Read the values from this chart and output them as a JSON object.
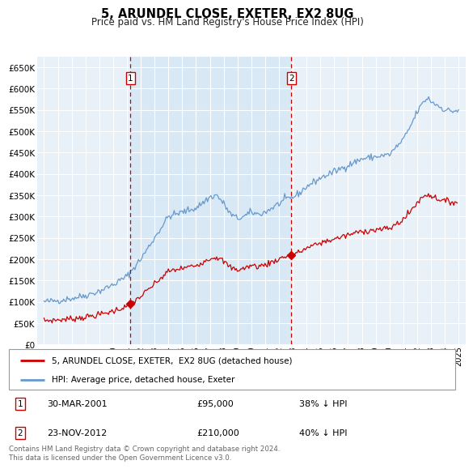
{
  "title": "5, ARUNDEL CLOSE, EXETER, EX2 8UG",
  "subtitle": "Price paid vs. HM Land Registry's House Price Index (HPI)",
  "legend_line1": "5, ARUNDEL CLOSE, EXETER,  EX2 8UG (detached house)",
  "legend_line2": "HPI: Average price, detached house, Exeter",
  "annotation1_date": "30-MAR-2001",
  "annotation1_price": "£95,000",
  "annotation1_hpi": "38% ↓ HPI",
  "annotation2_date": "23-NOV-2012",
  "annotation2_price": "£210,000",
  "annotation2_hpi": "40% ↓ HPI",
  "footer": "Contains HM Land Registry data © Crown copyright and database right 2024.\nThis data is licensed under the Open Government Licence v3.0.",
  "vline1_x": 2001.25,
  "vline2_x": 2012.9,
  "ylim": [
    0,
    675000
  ],
  "xlim": [
    1994.5,
    2025.5
  ],
  "yticks": [
    0,
    50000,
    100000,
    150000,
    200000,
    250000,
    300000,
    350000,
    400000,
    450000,
    500000,
    550000,
    600000,
    650000
  ],
  "bg_color": "#e8f0f8",
  "bg_between": "#dde8f4",
  "red_color": "#cc0000",
  "blue_color": "#6699cc",
  "grid_color": "#ffffff"
}
